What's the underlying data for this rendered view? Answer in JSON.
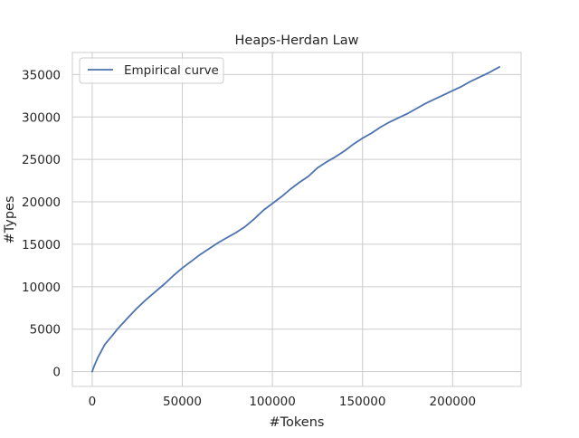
{
  "chart_data": {
    "type": "line",
    "title": "Heaps-Herdan Law",
    "xlabel": "#Tokens",
    "ylabel": "#Types",
    "xlim": [
      -11000,
      238000
    ],
    "ylim": [
      -1750,
      37600
    ],
    "xticks": [
      0,
      50000,
      100000,
      150000,
      200000
    ],
    "yticks": [
      0,
      5000,
      10000,
      15000,
      20000,
      25000,
      30000,
      35000
    ],
    "grid": true,
    "legend": {
      "position": "top-left"
    },
    "series": [
      {
        "name": "Empirical curve",
        "color": "#4c72b0",
        "x": [
          0,
          1000,
          2000,
          3000,
          5000,
          7000,
          9000,
          11000,
          14000,
          17000,
          20000,
          25000,
          30000,
          35000,
          40000,
          45000,
          50000,
          55000,
          60000,
          65000,
          70000,
          75000,
          80000,
          85000,
          90000,
          95000,
          100000,
          105000,
          110000,
          115000,
          120000,
          125000,
          130000,
          135000,
          140000,
          145000,
          150000,
          155000,
          160000,
          165000,
          170000,
          175000,
          180000,
          185000,
          190000,
          195000,
          200000,
          205000,
          210000,
          215000,
          220000,
          226000
        ],
        "y": [
          0,
          600,
          1100,
          1600,
          2400,
          3200,
          3700,
          4200,
          5000,
          5700,
          6400,
          7500,
          8500,
          9400,
          10300,
          11300,
          12200,
          13000,
          13800,
          14500,
          15200,
          15800,
          16400,
          17100,
          18000,
          19000,
          19800,
          20600,
          21500,
          22300,
          23000,
          24000,
          24700,
          25300,
          26000,
          26800,
          27500,
          28100,
          28800,
          29400,
          29900,
          30400,
          31000,
          31600,
          32100,
          32600,
          33100,
          33600,
          34200,
          34700,
          35200,
          35900
        ]
      }
    ]
  }
}
